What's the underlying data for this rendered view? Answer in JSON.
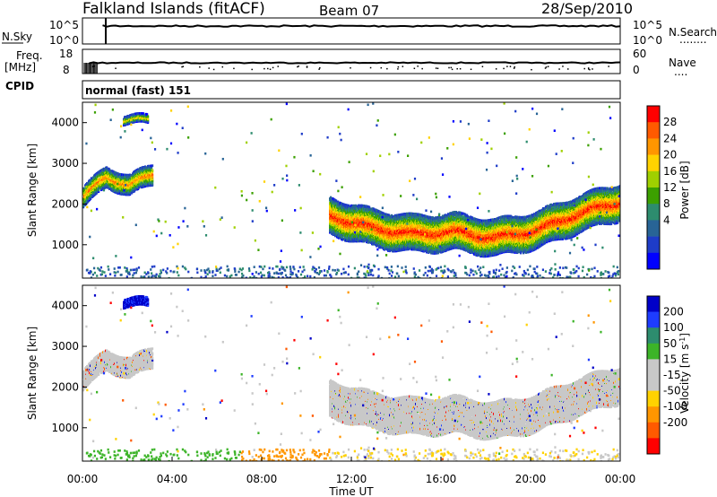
{
  "header": {
    "title": "Falkland Islands (fitACF)",
    "beam": "Beam 07",
    "date": "28/Sep/2010"
  },
  "sky_panel": {
    "left_label": "N.Sky",
    "right_label": "N.Search",
    "left_ticks": [
      "10^5",
      "10^0"
    ],
    "right_ticks": [
      "10^5",
      "10^0"
    ]
  },
  "freq_panel": {
    "left_label_line1": "Freq.",
    "left_label_line2": "[MHz]",
    "right_label": "Nave",
    "left_ticks": [
      "18",
      "8"
    ],
    "right_ticks": [
      "60",
      "0"
    ]
  },
  "cpid_panel": {
    "label": "CPID",
    "text": "normal (fast) 151"
  },
  "time_axis": {
    "label": "Time UT",
    "ticks": [
      "00:00",
      "04:00",
      "08:00",
      "12:00",
      "16:00",
      "20:00",
      "00:00"
    ]
  },
  "range_axis": {
    "label": "Slant Range [km]",
    "ticks": [
      "4000",
      "3000",
      "2000",
      "1000"
    ]
  },
  "power_colorbar": {
    "label": "Power [dB]",
    "ticks": [
      "28",
      "24",
      "20",
      "16",
      "12",
      "8",
      "4"
    ],
    "colors": [
      "#ff0000",
      "#ff5a00",
      "#ff9600",
      "#ffd200",
      "#a0d000",
      "#3ca000",
      "#2d8c6e",
      "#286496",
      "#1e3cc8",
      "#0000ff"
    ]
  },
  "velocity_colorbar": {
    "label": "Velocity [m s",
    "label_sup": "-1",
    "label_end": "]",
    "ticks": [
      "200",
      "100",
      "50",
      "15",
      "-15",
      "-50",
      "-100",
      "-200"
    ],
    "colors": [
      "#0000c8",
      "#1e3cff",
      "#2d8c6e",
      "#3cb428",
      "#c8c8c8",
      "#c8c8c8",
      "#ffd200",
      "#ff9600",
      "#ff5a00",
      "#ff0000"
    ]
  },
  "chart_data": {
    "type": "heatmap",
    "title": "Falkland Islands (fitACF)",
    "xlabel": "Time UT",
    "ylabel": "Slant Range [km]",
    "xlim": [
      0,
      24
    ],
    "ylim": [
      180,
      4500
    ],
    "power_bands": [
      {
        "name": "early_band",
        "t_start": 0.0,
        "t_end": 3.1,
        "range_center": [
          2200,
          2700,
          2500,
          2750
        ],
        "width": 500,
        "peak_db": 24
      },
      {
        "name": "high_patch",
        "t_start": 1.8,
        "t_end": 2.9,
        "range_center": [
          4100,
          4100,
          4100,
          4100
        ],
        "width": 200,
        "peak_db": 20
      },
      {
        "name": "main_band",
        "t_start": 11.0,
        "t_end": 24.0,
        "range_center": [
          1750,
          1450,
          1300,
          1350,
          1200,
          1400,
          1800,
          2100
        ],
        "width": 900,
        "peak_db": 28
      }
    ],
    "velocity_summary": {
      "dominant_range_m_s": [
        -15,
        15
      ],
      "high_patch_velocity_m_s": 200
    }
  }
}
